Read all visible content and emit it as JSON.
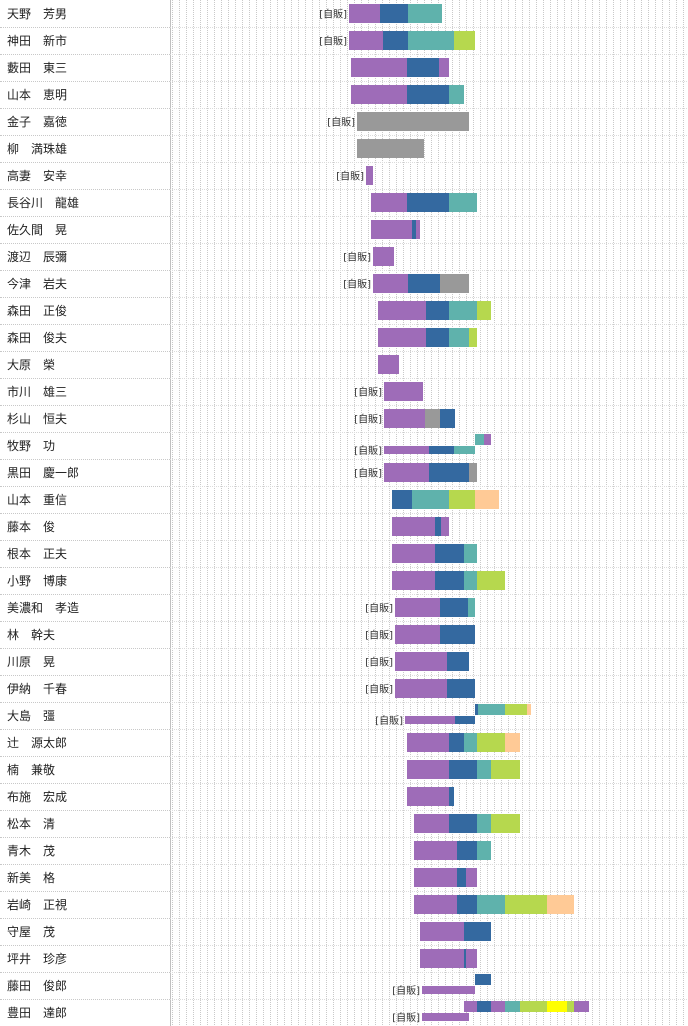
{
  "page_width": 688,
  "page_height": 1026,
  "colors": {
    "purple": "#9e6cb8",
    "blue": "#3469a0",
    "teal": "#5fb2ac",
    "gray": "#999999",
    "lime": "#b6d84e",
    "peach": "#ffca96",
    "yellow": "#ffff00"
  },
  "chart_data": {
    "type": "bar",
    "orientation": "horizontal-stacked",
    "categories": [
      "天野　芳男",
      "神田　新市",
      "藪田　東三",
      "山本　恵明",
      "金子　嘉徳",
      "柳　満珠雄",
      "高妻　安幸",
      "長谷川　龍雄",
      "佐久間　晃",
      "渡辺　辰彌",
      "今津　岩夫",
      "森田　正俊",
      "森田　俊夫",
      "大原　榮",
      "市川　雄三",
      "杉山　恒夫",
      "牧野　功",
      "黒田　慶一郎",
      "山本　重信",
      "藤本　俊",
      "根本　正夫",
      "小野　博康",
      "美濃和　孝造",
      "林　幹夫",
      "川原　晃",
      "伊納　千春",
      "大島　彊",
      "辻　源太郎",
      "楠　兼敬",
      "布施　宏成",
      "松本　清",
      "青木　茂",
      "新美　格",
      "岩崎　正視",
      "守屋　茂",
      "坪井　珍彦",
      "藤田　俊郎",
      "豊田　達郎"
    ],
    "segment_label": "[自販]",
    "rows": [
      {
        "label": true,
        "bars": [
          [
            {
              "color": "purple",
              "start": 349,
              "end": 380
            },
            {
              "color": "blue",
              "start": 380,
              "end": 408
            },
            {
              "color": "teal",
              "start": 408,
              "end": 442
            }
          ]
        ]
      },
      {
        "label": true,
        "bars": [
          [
            {
              "color": "purple",
              "start": 349,
              "end": 383
            },
            {
              "color": "blue",
              "start": 383,
              "end": 408
            },
            {
              "color": "teal",
              "start": 408,
              "end": 454
            },
            {
              "color": "lime",
              "start": 454,
              "end": 475
            }
          ]
        ]
      },
      {
        "label": false,
        "bars": [
          [
            {
              "color": "purple",
              "start": 351,
              "end": 407
            },
            {
              "color": "blue",
              "start": 407,
              "end": 439
            },
            {
              "color": "purple",
              "start": 439,
              "end": 449
            }
          ]
        ]
      },
      {
        "label": false,
        "bars": [
          [
            {
              "color": "purple",
              "start": 351,
              "end": 407
            },
            {
              "color": "blue",
              "start": 407,
              "end": 449
            },
            {
              "color": "teal",
              "start": 449,
              "end": 464
            }
          ]
        ]
      },
      {
        "label": true,
        "bars": [
          [
            {
              "color": "gray",
              "start": 357,
              "end": 469
            }
          ]
        ]
      },
      {
        "label": false,
        "bars": [
          [
            {
              "color": "gray",
              "start": 357,
              "end": 424
            }
          ]
        ]
      },
      {
        "label": true,
        "bars": [
          [
            {
              "color": "purple",
              "start": 366,
              "end": 373
            }
          ]
        ]
      },
      {
        "label": false,
        "bars": [
          [
            {
              "color": "purple",
              "start": 371,
              "end": 407
            },
            {
              "color": "blue",
              "start": 407,
              "end": 449
            },
            {
              "color": "teal",
              "start": 449,
              "end": 477
            }
          ]
        ]
      },
      {
        "label": false,
        "bars": [
          [
            {
              "color": "purple",
              "start": 371,
              "end": 412
            },
            {
              "color": "blue",
              "start": 412,
              "end": 416
            },
            {
              "color": "purple",
              "start": 416,
              "end": 420
            }
          ]
        ]
      },
      {
        "label": true,
        "bars": [
          [
            {
              "color": "purple",
              "start": 373,
              "end": 394
            }
          ]
        ]
      },
      {
        "label": true,
        "bars": [
          [
            {
              "color": "purple",
              "start": 373,
              "end": 408
            },
            {
              "color": "blue",
              "start": 408,
              "end": 440
            },
            {
              "color": "gray",
              "start": 440,
              "end": 469
            }
          ]
        ]
      },
      {
        "label": false,
        "bars": [
          [
            {
              "color": "purple",
              "start": 378,
              "end": 426
            },
            {
              "color": "blue",
              "start": 426,
              "end": 449
            },
            {
              "color": "teal",
              "start": 449,
              "end": 477
            },
            {
              "color": "lime",
              "start": 477,
              "end": 491
            }
          ]
        ]
      },
      {
        "label": false,
        "bars": [
          [
            {
              "color": "purple",
              "start": 378,
              "end": 426
            },
            {
              "color": "blue",
              "start": 426,
              "end": 449
            },
            {
              "color": "teal",
              "start": 449,
              "end": 469
            },
            {
              "color": "lime",
              "start": 469,
              "end": 477
            }
          ]
        ]
      },
      {
        "label": false,
        "bars": [
          [
            {
              "color": "purple",
              "start": 378,
              "end": 399
            }
          ]
        ]
      },
      {
        "label": true,
        "bars": [
          [
            {
              "color": "purple",
              "start": 384,
              "end": 423
            }
          ]
        ]
      },
      {
        "label": true,
        "bars": [
          [
            {
              "color": "purple",
              "start": 384,
              "end": 425
            },
            {
              "color": "gray",
              "start": 425,
              "end": 440
            },
            {
              "color": "blue",
              "start": 440,
              "end": 455
            }
          ]
        ]
      },
      {
        "label": true,
        "bars": [
          [
            {
              "color": "teal",
              "start": 475,
              "end": 484
            },
            {
              "color": "purple",
              "start": 484,
              "end": 491
            }
          ],
          [
            {
              "color": "purple",
              "start": 384,
              "end": 429
            },
            {
              "color": "blue",
              "start": 429,
              "end": 454
            },
            {
              "color": "teal",
              "start": 454,
              "end": 475
            }
          ]
        ]
      },
      {
        "label": true,
        "bars": [
          [
            {
              "color": "purple",
              "start": 384,
              "end": 429
            },
            {
              "color": "blue",
              "start": 429,
              "end": 469
            },
            {
              "color": "gray",
              "start": 469,
              "end": 477
            }
          ]
        ]
      },
      {
        "label": false,
        "bars": [
          [
            {
              "color": "blue",
              "start": 392,
              "end": 412
            },
            {
              "color": "teal",
              "start": 412,
              "end": 449
            },
            {
              "color": "lime",
              "start": 449,
              "end": 475
            },
            {
              "color": "peach",
              "start": 475,
              "end": 499
            }
          ]
        ]
      },
      {
        "label": false,
        "bars": [
          [
            {
              "color": "purple",
              "start": 392,
              "end": 435
            },
            {
              "color": "blue",
              "start": 435,
              "end": 441
            },
            {
              "color": "purple",
              "start": 441,
              "end": 449
            }
          ]
        ]
      },
      {
        "label": false,
        "bars": [
          [
            {
              "color": "purple",
              "start": 392,
              "end": 435
            },
            {
              "color": "blue",
              "start": 435,
              "end": 464
            },
            {
              "color": "teal",
              "start": 464,
              "end": 477
            }
          ]
        ]
      },
      {
        "label": false,
        "bars": [
          [
            {
              "color": "purple",
              "start": 392,
              "end": 435
            },
            {
              "color": "blue",
              "start": 435,
              "end": 464
            },
            {
              "color": "teal",
              "start": 464,
              "end": 477
            },
            {
              "color": "lime",
              "start": 477,
              "end": 505
            }
          ]
        ]
      },
      {
        "label": true,
        "bars": [
          [
            {
              "color": "purple",
              "start": 395,
              "end": 440
            },
            {
              "color": "blue",
              "start": 440,
              "end": 468
            },
            {
              "color": "teal",
              "start": 468,
              "end": 475
            }
          ]
        ]
      },
      {
        "label": true,
        "bars": [
          [
            {
              "color": "purple",
              "start": 395,
              "end": 440
            },
            {
              "color": "blue",
              "start": 440,
              "end": 475
            }
          ]
        ]
      },
      {
        "label": true,
        "bars": [
          [
            {
              "color": "purple",
              "start": 395,
              "end": 447
            },
            {
              "color": "blue",
              "start": 447,
              "end": 469
            }
          ]
        ]
      },
      {
        "label": true,
        "bars": [
          [
            {
              "color": "purple",
              "start": 395,
              "end": 447
            },
            {
              "color": "blue",
              "start": 447,
              "end": 475
            }
          ]
        ]
      },
      {
        "label": true,
        "bars": [
          [
            {
              "color": "blue",
              "start": 475,
              "end": 478
            },
            {
              "color": "teal",
              "start": 478,
              "end": 505
            },
            {
              "color": "lime",
              "start": 505,
              "end": 527
            },
            {
              "color": "peach",
              "start": 527,
              "end": 531
            }
          ],
          [
            {
              "color": "purple",
              "start": 405,
              "end": 455
            },
            {
              "color": "blue",
              "start": 455,
              "end": 475
            }
          ]
        ]
      },
      {
        "label": false,
        "bars": [
          [
            {
              "color": "purple",
              "start": 407,
              "end": 449
            },
            {
              "color": "blue",
              "start": 449,
              "end": 464
            },
            {
              "color": "teal",
              "start": 464,
              "end": 477
            },
            {
              "color": "lime",
              "start": 477,
              "end": 505
            },
            {
              "color": "peach",
              "start": 505,
              "end": 520
            }
          ]
        ]
      },
      {
        "label": false,
        "bars": [
          [
            {
              "color": "purple",
              "start": 407,
              "end": 449
            },
            {
              "color": "blue",
              "start": 449,
              "end": 477
            },
            {
              "color": "teal",
              "start": 477,
              "end": 491
            },
            {
              "color": "lime",
              "start": 491,
              "end": 520
            }
          ]
        ]
      },
      {
        "label": false,
        "bars": [
          [
            {
              "color": "purple",
              "start": 407,
              "end": 449
            },
            {
              "color": "blue",
              "start": 449,
              "end": 454
            }
          ]
        ]
      },
      {
        "label": false,
        "bars": [
          [
            {
              "color": "purple",
              "start": 414,
              "end": 449
            },
            {
              "color": "blue",
              "start": 449,
              "end": 477
            },
            {
              "color": "teal",
              "start": 477,
              "end": 491
            },
            {
              "color": "lime",
              "start": 491,
              "end": 520
            }
          ]
        ]
      },
      {
        "label": false,
        "bars": [
          [
            {
              "color": "purple",
              "start": 414,
              "end": 457
            },
            {
              "color": "blue",
              "start": 457,
              "end": 477
            },
            {
              "color": "teal",
              "start": 477,
              "end": 491
            }
          ]
        ]
      },
      {
        "label": false,
        "bars": [
          [
            {
              "color": "purple",
              "start": 414,
              "end": 457
            },
            {
              "color": "blue",
              "start": 457,
              "end": 466
            },
            {
              "color": "purple",
              "start": 466,
              "end": 477
            }
          ]
        ]
      },
      {
        "label": false,
        "bars": [
          [
            {
              "color": "purple",
              "start": 414,
              "end": 457
            },
            {
              "color": "blue",
              "start": 457,
              "end": 477
            },
            {
              "color": "teal",
              "start": 477,
              "end": 505
            },
            {
              "color": "lime",
              "start": 505,
              "end": 547
            },
            {
              "color": "peach",
              "start": 547,
              "end": 574
            }
          ]
        ]
      },
      {
        "label": false,
        "bars": [
          [
            {
              "color": "purple",
              "start": 420,
              "end": 464
            },
            {
              "color": "blue",
              "start": 464,
              "end": 491
            }
          ]
        ]
      },
      {
        "label": false,
        "bars": [
          [
            {
              "color": "purple",
              "start": 420,
              "end": 464
            },
            {
              "color": "blue",
              "start": 464,
              "end": 466
            },
            {
              "color": "purple",
              "start": 466,
              "end": 477
            }
          ]
        ]
      },
      {
        "label": true,
        "bars": [
          [
            {
              "color": "blue",
              "start": 475,
              "end": 491
            }
          ],
          [
            {
              "color": "purple",
              "start": 422,
              "end": 475
            }
          ]
        ]
      },
      {
        "label": true,
        "bars": [
          [
            {
              "color": "purple",
              "start": 464,
              "end": 477
            },
            {
              "color": "blue",
              "start": 477,
              "end": 491
            },
            {
              "color": "purple",
              "start": 491,
              "end": 505
            },
            {
              "color": "teal",
              "start": 505,
              "end": 520
            },
            {
              "color": "lime",
              "start": 520,
              "end": 547
            },
            {
              "color": "yellow",
              "start": 547,
              "end": 567
            },
            {
              "color": "lime",
              "start": 567,
              "end": 574
            },
            {
              "color": "purple",
              "start": 574,
              "end": 589
            }
          ],
          [
            {
              "color": "purple",
              "start": 422,
              "end": 469
            }
          ]
        ]
      }
    ]
  }
}
